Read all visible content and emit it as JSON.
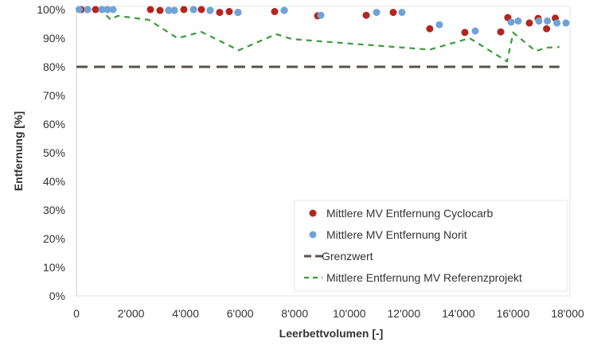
{
  "chart_data": {
    "type": "scatter",
    "xlabel": "Leerbettvolumen [-]",
    "ylabel": "Entfernung [%]",
    "xlim": [
      0,
      18000
    ],
    "ylim": [
      0,
      100
    ],
    "xticks": [
      0,
      2000,
      4000,
      6000,
      8000,
      10000,
      12000,
      14000,
      16000,
      18000
    ],
    "xtick_labels": [
      "0",
      "2'000",
      "4'000",
      "6'000",
      "8'000",
      "10'000",
      "12'000",
      "14'000",
      "16'000",
      "18'000"
    ],
    "yticks": [
      0,
      10,
      20,
      30,
      40,
      50,
      60,
      70,
      80,
      90,
      100
    ],
    "ytick_labels": [
      "0%",
      "10%",
      "20%",
      "30%",
      "40%",
      "50%",
      "60%",
      "70%",
      "80%",
      "90%",
      "100%"
    ],
    "grid": false,
    "legend_position": "bottom-right",
    "series": [
      {
        "name": "Mittlere MV Entfernung Cyclocarb",
        "kind": "scatter",
        "color": "#b3261e",
        "x": [
          175,
          408,
          700,
          933,
          1137,
          2713,
          3063,
          3384,
          3588,
          3938,
          4288,
          4580,
          4900,
          5250,
          5600,
          5922,
          7264,
          7614,
          8840,
          10620,
          11610,
          12950,
          14235,
          15550,
          15810,
          16600,
          16920,
          17230,
          17550
        ],
        "y": [
          100,
          100,
          100,
          100,
          100,
          100,
          99.7,
          99.7,
          99.7,
          100,
          100,
          100,
          99.7,
          99,
          99.3,
          99,
          99.3,
          99.7,
          97.8,
          98,
          99,
          93.3,
          92,
          92.2,
          97.2,
          95.3,
          96.9,
          93.3,
          97
        ]
      },
      {
        "name": "Mittlere MV Entfernung Norit",
        "kind": "scatter",
        "color": "#6fa3d8",
        "x": [
          100,
          408,
          933,
          1137,
          1342,
          3384,
          3588,
          4288,
          4900,
          5922,
          7614,
          8956,
          11000,
          11930,
          13300,
          14615,
          15930,
          16190,
          16950,
          17260,
          17610,
          17940
        ],
        "y": [
          100,
          100,
          100,
          100,
          100,
          99.7,
          99.7,
          100,
          99.7,
          99,
          99.7,
          98,
          99,
          99,
          94.7,
          92.5,
          95.6,
          96,
          96,
          96,
          95.3,
          95.3
        ]
      },
      {
        "name": "Grenzwert",
        "kind": "line",
        "dash": "long",
        "color": "#5a504c",
        "x": [
          0,
          17700
        ],
        "y": [
          80,
          80
        ]
      },
      {
        "name": "Mittlere Entfernung MV Referenzprojekt",
        "kind": "line",
        "dash": "short",
        "color": "#3a9a3a",
        "x": [
          1100,
          1250,
          1517,
          2654,
          3705,
          4580,
          5950,
          7320,
          7900,
          8956,
          12950,
          14410,
          15780,
          16010,
          16830,
          17230,
          17700
        ],
        "y": [
          98,
          96.5,
          97.8,
          96.4,
          90,
          92.2,
          85.8,
          91.4,
          89.7,
          88.9,
          86,
          90,
          81.9,
          91.9,
          85.5,
          86.7,
          86.9
        ]
      }
    ]
  }
}
